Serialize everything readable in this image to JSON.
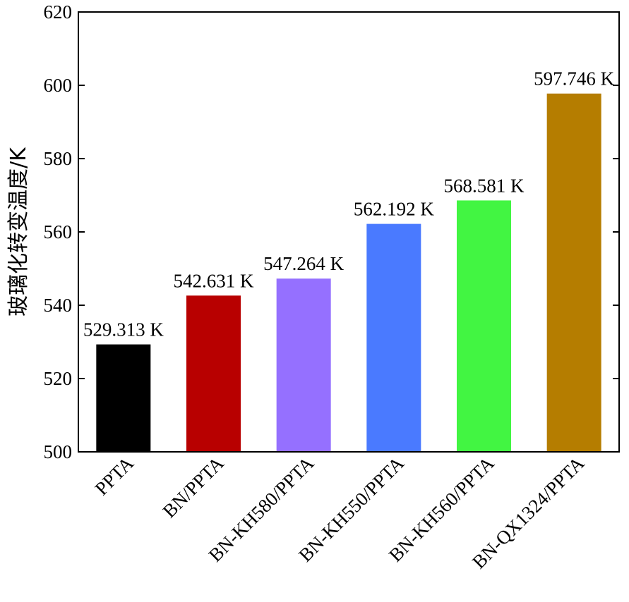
{
  "chart_data": {
    "type": "bar",
    "title": "",
    "xlabel": "",
    "ylabel": "玻璃化转变温度/K",
    "ylim": [
      500,
      620
    ],
    "yticks": [
      500,
      520,
      540,
      560,
      580,
      600,
      620
    ],
    "grid": false,
    "legend": "none",
    "categories": [
      "PPTA",
      "BN/PPTA",
      "BN-KH580/PPTA",
      "BN-KH550/PPTA",
      "BN-KH560/PPTA",
      "BN-QX1324/PPTA"
    ],
    "values": [
      529.313,
      542.631,
      547.264,
      562.192,
      568.581,
      597.746
    ],
    "data_labels": [
      "529.313 K",
      "542.631 K",
      "547.264 K",
      "562.192 K",
      "568.581 K",
      "597.746 K"
    ],
    "colors": [
      "#000000",
      "#b80000",
      "#9570ff",
      "#4a7aff",
      "#42f542",
      "#b57d00"
    ]
  }
}
